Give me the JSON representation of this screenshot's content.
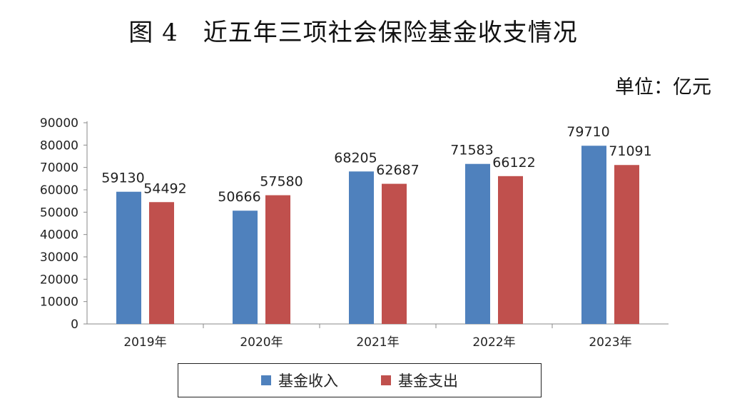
{
  "title": "图 4　近五年三项社会保险基金收支情况",
  "unit": "单位：亿元",
  "chart_data": {
    "type": "bar",
    "categories": [
      "2019年",
      "2020年",
      "2021年",
      "2022年",
      "2023年"
    ],
    "series": [
      {
        "name": "基金收入",
        "values": [
          59130,
          50666,
          68205,
          71583,
          79710
        ],
        "color": "#4F81BD"
      },
      {
        "name": "基金支出",
        "values": [
          54492,
          57580,
          62687,
          66122,
          71091
        ],
        "color": "#C0504D"
      }
    ],
    "yticks": [
      "0",
      "10000",
      "20000",
      "30000",
      "40000",
      "50000",
      "60000",
      "70000",
      "80000",
      "90000"
    ],
    "ylim": [
      0,
      90000
    ],
    "legend_position": "bottom",
    "grid": false
  }
}
